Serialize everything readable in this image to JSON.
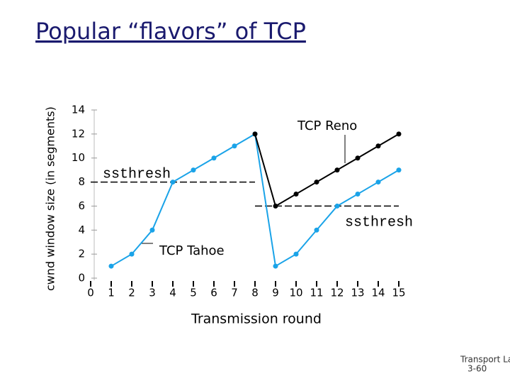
{
  "chart_data": {
    "type": "line",
    "title": "Popular “flavors” of TCP",
    "x_label": "Transmission round",
    "y_label": "cwnd window size (in segments)",
    "xlim": [
      0,
      15
    ],
    "ylim": [
      0,
      14
    ],
    "xticks": [
      0,
      1,
      2,
      3,
      4,
      5,
      6,
      7,
      8,
      9,
      10,
      11,
      12,
      13,
      14,
      15
    ],
    "yticks": [
      0,
      2,
      4,
      6,
      8,
      10,
      12,
      14
    ],
    "grid": false,
    "series": [
      {
        "name": "TCP Reno",
        "color": "#000000",
        "x": [
          8,
          9,
          10,
          11,
          12,
          13,
          14,
          15
        ],
        "values": [
          12,
          6,
          7,
          8,
          9,
          10,
          11,
          12
        ]
      },
      {
        "name": "TCP Tahoe",
        "color": "#1aa3e8",
        "x": [
          1,
          2,
          3,
          4,
          5,
          6,
          7,
          8,
          9,
          10,
          11,
          12,
          13,
          14,
          15
        ],
        "values": [
          1,
          2,
          4,
          8,
          9,
          10,
          11,
          12,
          1,
          2,
          4,
          6,
          7,
          8,
          9
        ]
      }
    ],
    "thresholds": [
      {
        "label": "ssthresh",
        "value": 8,
        "x": [
          0,
          8
        ]
      },
      {
        "label": "ssthresh",
        "value": 6,
        "x": [
          8,
          15
        ]
      }
    ]
  },
  "footer": {
    "section": "Transport Layer",
    "page": "3-60"
  }
}
